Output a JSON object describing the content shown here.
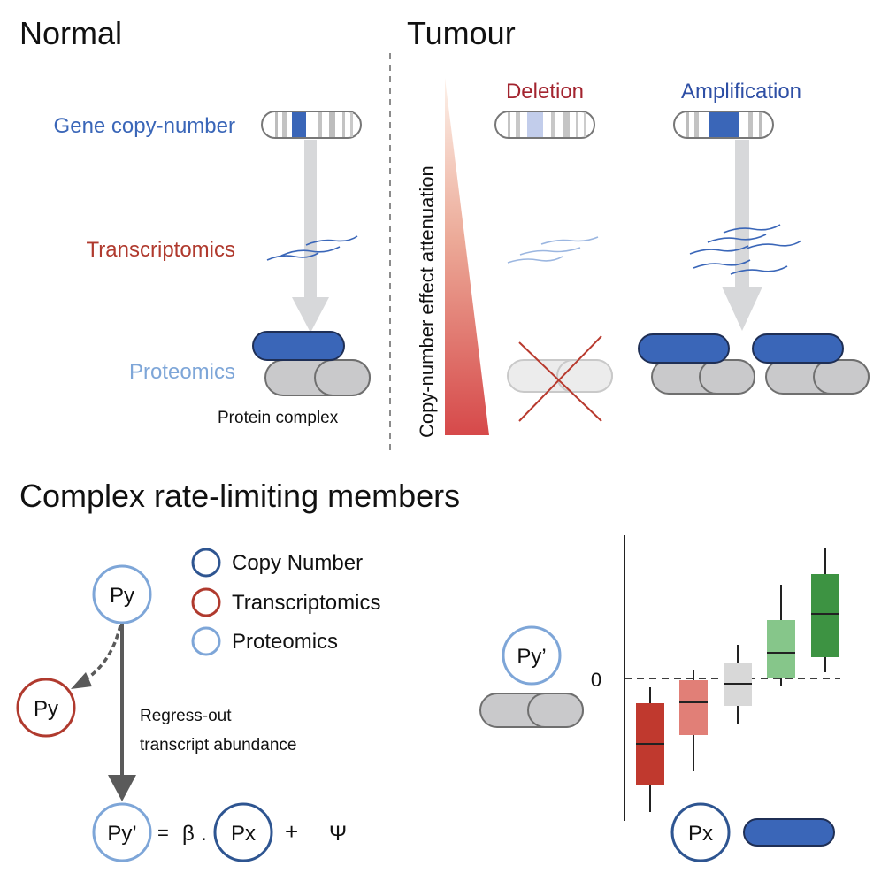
{
  "top": {
    "normal_heading": "Normal",
    "tumour_heading": "Tumour",
    "row_labels": {
      "gene_copy_number": "Gene copy-number",
      "transcriptomics": "Transcriptomics",
      "proteomics": "Proteomics"
    },
    "protein_complex_label": "Protein complex",
    "attenuation_label": "Copy-number effect attenuation",
    "deletion_label": "Deletion",
    "amplification_label": "Amplification"
  },
  "bottom": {
    "heading": "Complex rate-limiting members",
    "legend": [
      {
        "label": "Copy Number",
        "color": "#2e5591"
      },
      {
        "label": "Transcriptomics",
        "color": "#b03a2e"
      },
      {
        "label": "Proteomics",
        "color": "#7ea6d8"
      }
    ],
    "nodes": {
      "py_protein": "Py",
      "py_transcript": "Py",
      "py_residual": "Py’",
      "px": "Px"
    },
    "regress_text_line1": "Regress-out",
    "regress_text_line2": "transcript abundance",
    "equation": {
      "equals": "=",
      "beta": "β",
      "dot": ".",
      "plus": "+",
      "psi": "Ψ"
    },
    "box_plot": {
      "zero_label": "0",
      "py_label": "Py’",
      "px_label": "Px"
    }
  },
  "colors": {
    "copy_number_blue": "#3a66b8",
    "transcript_red": "#b03a2e",
    "proteomics_light_blue": "#7ea6d8",
    "complex_gray": "#c9c9cb",
    "arrow_gray": "#d7d8da",
    "dark_arrow": "#5a5a5a"
  }
}
